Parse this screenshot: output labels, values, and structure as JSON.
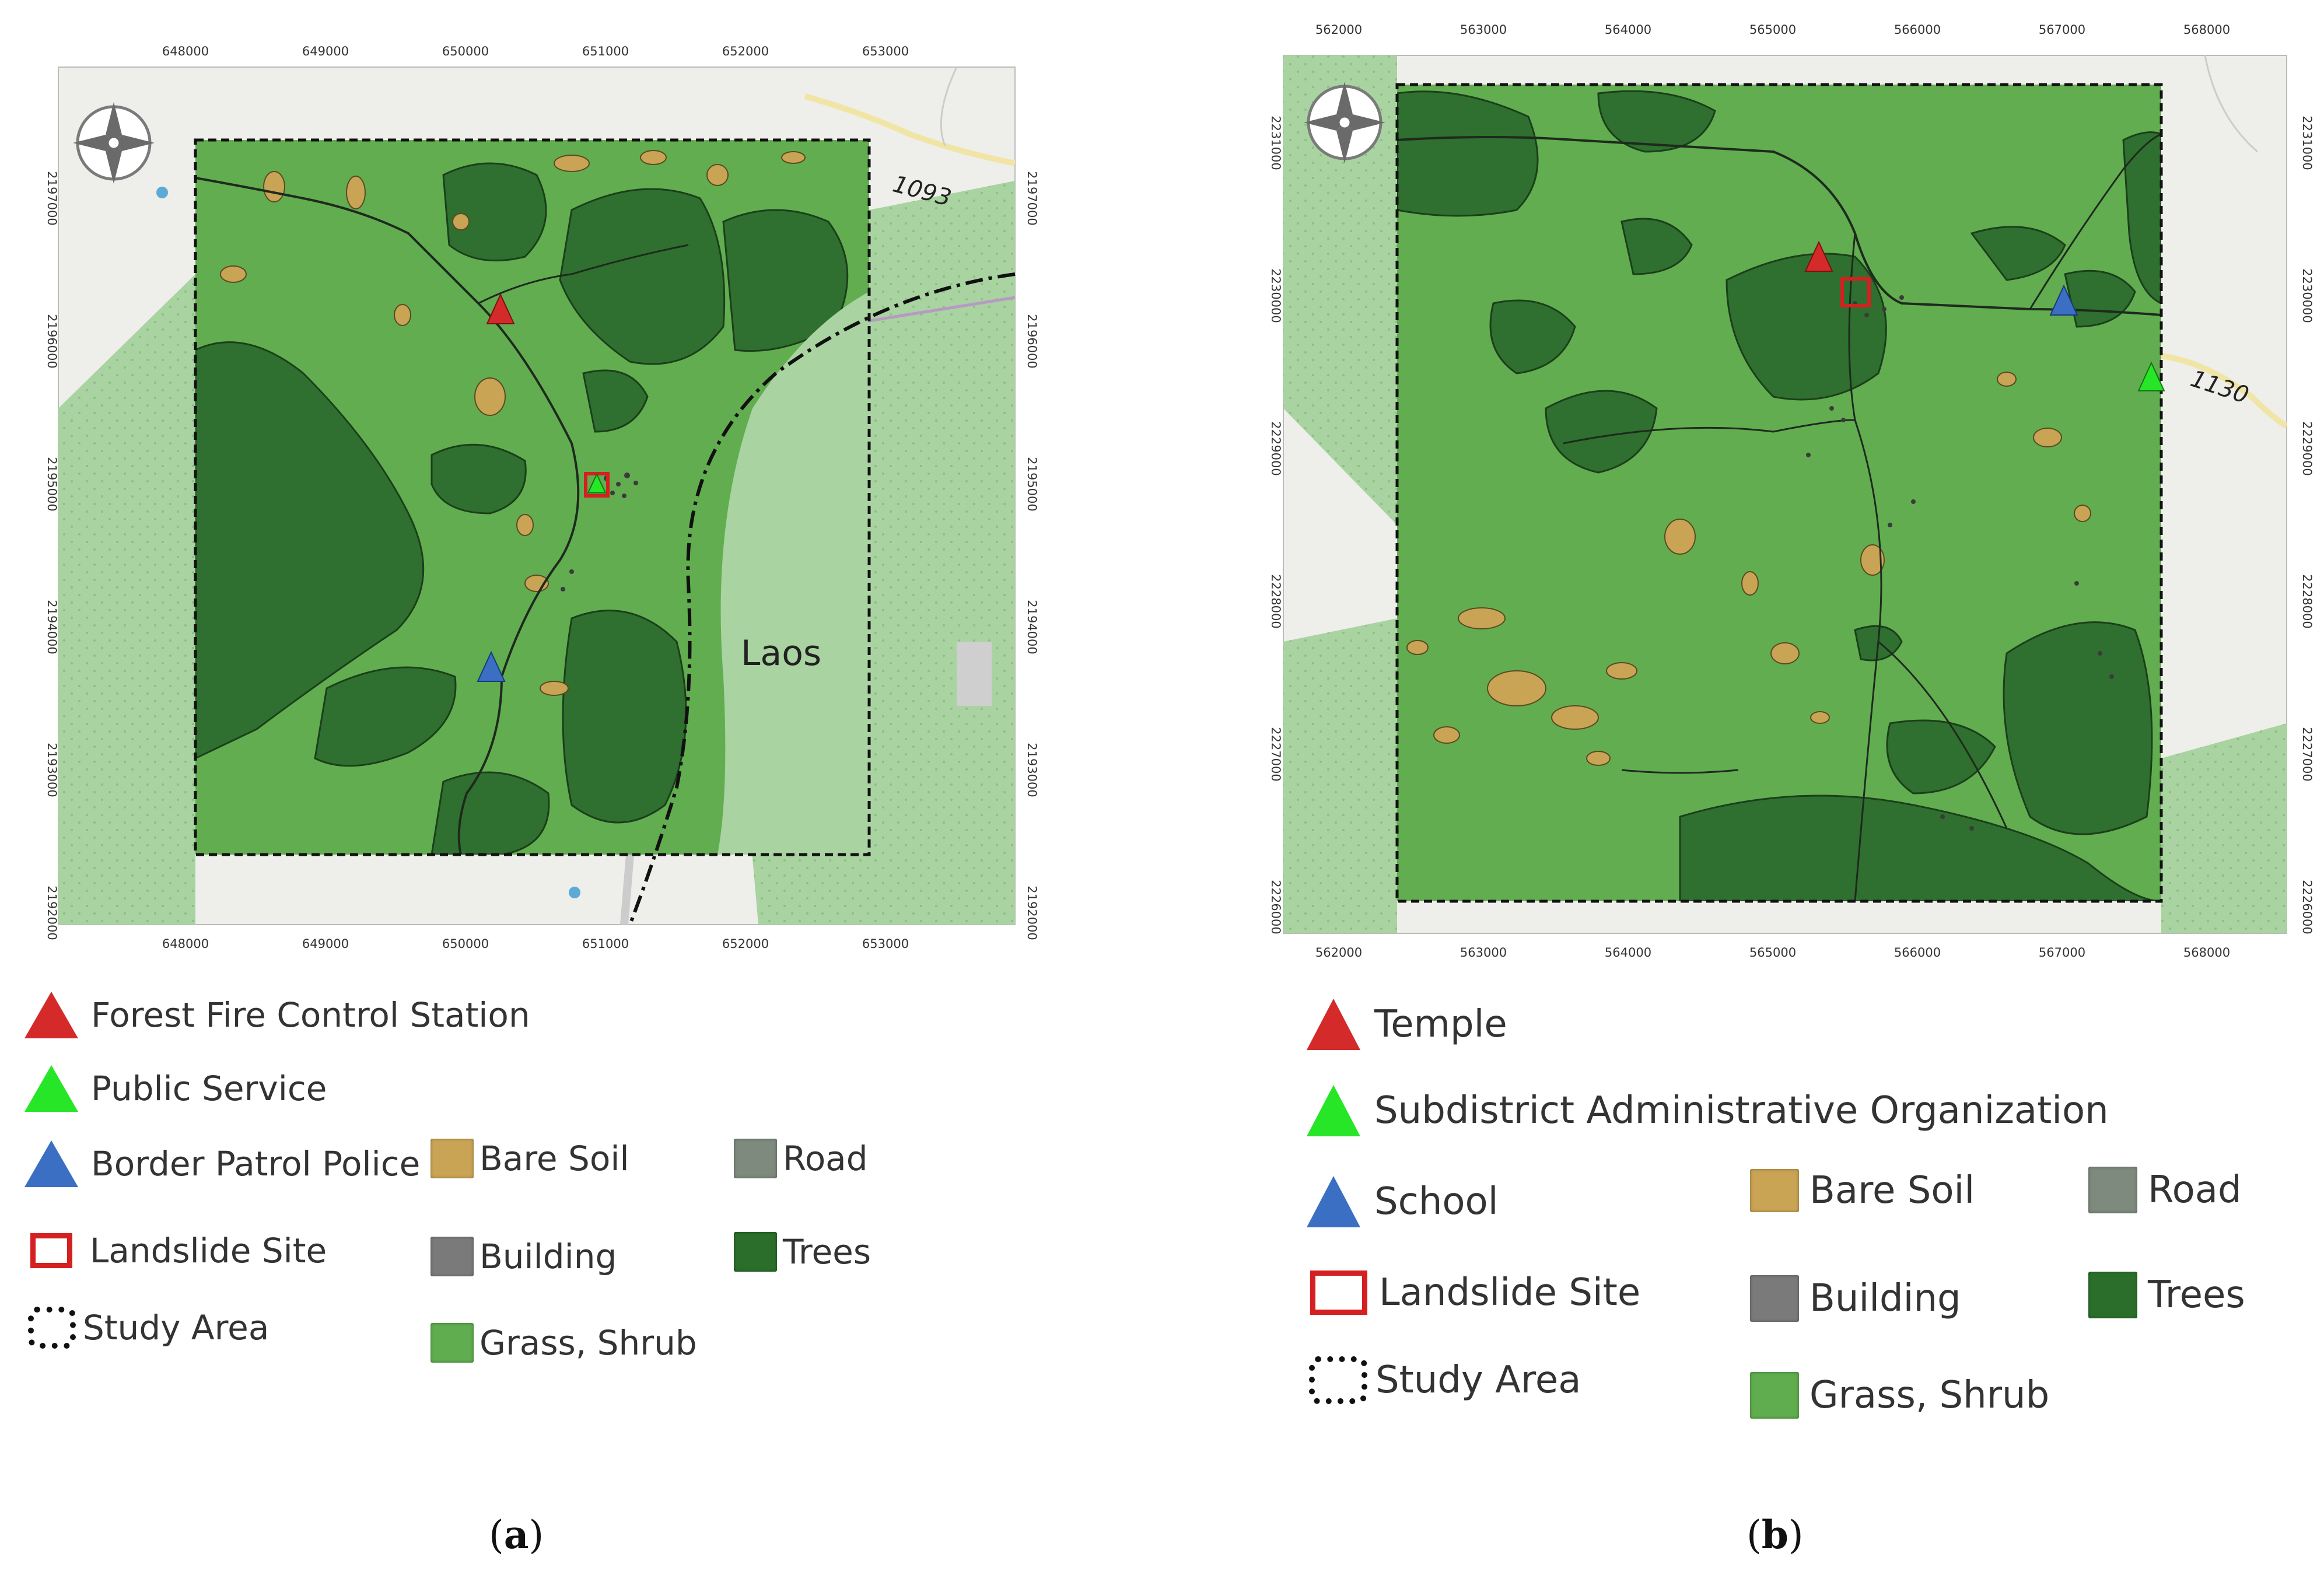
{
  "panel_a": {
    "caption_open": "(",
    "caption_letter": "a",
    "caption_close": ")",
    "x_ticks": [
      "648000",
      "649000",
      "650000",
      "651000",
      "652000",
      "653000"
    ],
    "y_ticks": [
      "2197000",
      "2196000",
      "2195000",
      "2194000",
      "2193000",
      "2192000"
    ],
    "route_label": "1093",
    "country_label": "Laos",
    "legend": {
      "points": [
        {
          "label": "Forest Fire Control Station",
          "color": "#d42a2a"
        },
        {
          "label": "Public Service",
          "color": "#27e627"
        },
        {
          "label": "Border Patrol Police",
          "color": "#3a6fc4"
        }
      ],
      "landslide": "Landslide Site",
      "study_area": "Study Area",
      "classes": [
        {
          "label": "Bare Soil",
          "color": "#c9a455"
        },
        {
          "label": "Building",
          "color": "#7a7a7a"
        },
        {
          "label": "Grass, Shrub",
          "color": "#5fad4f"
        },
        {
          "label": "Road",
          "color": "#7d8a7d"
        },
        {
          "label": "Trees",
          "color": "#2b6e2b"
        }
      ]
    }
  },
  "panel_b": {
    "caption_open": "(",
    "caption_letter": "b",
    "caption_close": ")",
    "x_ticks": [
      "562000",
      "563000",
      "564000",
      "565000",
      "566000",
      "567000",
      "568000"
    ],
    "y_ticks": [
      "2231000",
      "2230000",
      "2229000",
      "2228000",
      "2227000",
      "2226000"
    ],
    "route_label": "1130",
    "legend": {
      "points": [
        {
          "label": "Temple",
          "color": "#d42a2a"
        },
        {
          "label": "Subdistrict Administrative Organization",
          "color": "#27e627"
        },
        {
          "label": "School",
          "color": "#3a6fc4"
        }
      ],
      "landslide": "Landslide Site",
      "study_area": "Study Area",
      "classes": [
        {
          "label": "Bare Soil",
          "color": "#c9a455"
        },
        {
          "label": "Building",
          "color": "#7a7a7a"
        },
        {
          "label": "Grass, Shrub",
          "color": "#5fad4f"
        },
        {
          "label": "Road",
          "color": "#7d8a7d"
        },
        {
          "label": "Trees",
          "color": "#2b6e2b"
        }
      ]
    }
  },
  "colors": {
    "grass": "#62ad50",
    "trees": "#2f6f2f",
    "bare_soil": "#c9a455",
    "basemap": "#eeeeea",
    "light_forest": "#a9d3a0"
  }
}
